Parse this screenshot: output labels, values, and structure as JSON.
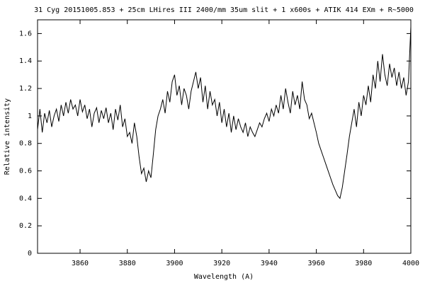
{
  "chart_data": {
    "type": "line",
    "title": "31 Cyg 20151005.853 + 25cm LHires III 2400/mm 35um slit + 1 x600s + ATIK 414 EXm + R~5000",
    "xlabel": "Wavelength (A)",
    "ylabel": "Relative intensity",
    "color": "#000000",
    "xlim": [
      3842,
      4000
    ],
    "ylim": [
      0,
      1.7
    ],
    "xticks": [
      3860,
      3880,
      3900,
      3920,
      3940,
      3960,
      3980,
      4000
    ],
    "yticks": [
      0,
      0.2,
      0.4,
      0.6,
      0.8,
      1,
      1.2,
      1.4,
      1.6
    ],
    "x": [
      3842,
      3843,
      3844,
      3845,
      3846,
      3847,
      3848,
      3849,
      3850,
      3851,
      3852,
      3853,
      3854,
      3855,
      3856,
      3857,
      3858,
      3859,
      3860,
      3861,
      3862,
      3863,
      3864,
      3865,
      3866,
      3867,
      3868,
      3869,
      3870,
      3871,
      3872,
      3873,
      3874,
      3875,
      3876,
      3877,
      3878,
      3879,
      3880,
      3881,
      3882,
      3883,
      3884,
      3885,
      3886,
      3887,
      3888,
      3889,
      3890,
      3891,
      3892,
      3893,
      3894,
      3895,
      3896,
      3897,
      3898,
      3899,
      3900,
      3901,
      3902,
      3903,
      3904,
      3905,
      3906,
      3907,
      3908,
      3909,
      3910,
      3911,
      3912,
      3913,
      3914,
      3915,
      3916,
      3917,
      3918,
      3919,
      3920,
      3921,
      3922,
      3923,
      3924,
      3925,
      3926,
      3927,
      3928,
      3929,
      3930,
      3931,
      3932,
      3933,
      3934,
      3935,
      3936,
      3937,
      3938,
      3939,
      3940,
      3941,
      3942,
      3943,
      3944,
      3945,
      3946,
      3947,
      3948,
      3949,
      3950,
      3951,
      3952,
      3953,
      3954,
      3955,
      3956,
      3957,
      3958,
      3959,
      3960,
      3961,
      3962,
      3963,
      3964,
      3965,
      3966,
      3967,
      3968,
      3969,
      3970,
      3971,
      3972,
      3973,
      3974,
      3975,
      3976,
      3977,
      3978,
      3979,
      3980,
      3981,
      3982,
      3983,
      3984,
      3985,
      3986,
      3987,
      3988,
      3989,
      3990,
      3991,
      3992,
      3993,
      3994,
      3995,
      3996,
      3997,
      3998,
      3999,
      4000
    ],
    "values": [
      0.9,
      1.05,
      0.88,
      1.02,
      0.95,
      1.04,
      0.92,
      1.0,
      1.05,
      0.96,
      1.08,
      1.0,
      1.1,
      1.02,
      1.12,
      1.05,
      1.08,
      1.0,
      1.12,
      1.03,
      1.08,
      0.98,
      1.05,
      0.92,
      1.02,
      1.06,
      0.95,
      1.04,
      0.98,
      1.06,
      0.95,
      1.02,
      0.9,
      1.05,
      0.97,
      1.08,
      0.92,
      0.98,
      0.85,
      0.88,
      0.8,
      0.95,
      0.85,
      0.7,
      0.58,
      0.62,
      0.52,
      0.6,
      0.55,
      0.72,
      0.9,
      1.0,
      1.05,
      1.12,
      1.02,
      1.18,
      1.1,
      1.25,
      1.3,
      1.15,
      1.22,
      1.08,
      1.2,
      1.15,
      1.05,
      1.18,
      1.25,
      1.32,
      1.2,
      1.28,
      1.1,
      1.22,
      1.05,
      1.18,
      1.08,
      1.12,
      1.0,
      1.1,
      0.95,
      1.05,
      0.92,
      1.02,
      0.88,
      1.0,
      0.9,
      0.98,
      0.92,
      0.88,
      0.95,
      0.85,
      0.92,
      0.88,
      0.85,
      0.9,
      0.95,
      0.92,
      0.98,
      1.02,
      0.96,
      1.05,
      1.0,
      1.08,
      1.02,
      1.15,
      1.05,
      1.2,
      1.1,
      1.02,
      1.18,
      1.08,
      1.15,
      1.05,
      1.25,
      1.12,
      1.08,
      0.98,
      1.02,
      0.95,
      0.88,
      0.8,
      0.75,
      0.7,
      0.65,
      0.6,
      0.55,
      0.5,
      0.46,
      0.42,
      0.4,
      0.48,
      0.6,
      0.72,
      0.85,
      0.95,
      1.05,
      0.92,
      1.1,
      1.0,
      1.15,
      1.08,
      1.22,
      1.1,
      1.3,
      1.2,
      1.4,
      1.25,
      1.45,
      1.3,
      1.22,
      1.38,
      1.28,
      1.35,
      1.22,
      1.32,
      1.2,
      1.28,
      1.15,
      1.25,
      1.65
    ]
  }
}
